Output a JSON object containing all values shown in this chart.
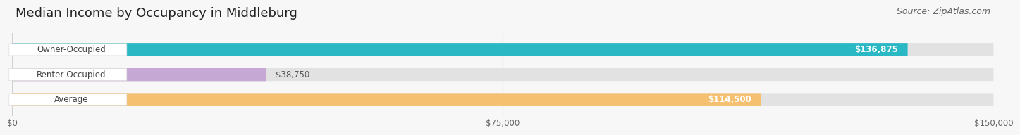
{
  "title": "Median Income by Occupancy in Middleburg",
  "source": "Source: ZipAtlas.com",
  "categories": [
    "Owner-Occupied",
    "Renter-Occupied",
    "Average"
  ],
  "values": [
    136875,
    38750,
    114500
  ],
  "value_labels": [
    "$136,875",
    "$38,750",
    "$114,500"
  ],
  "bar_colors": [
    "#2ab8c5",
    "#c5a8d4",
    "#f5c070"
  ],
  "bar_bg_color": "#e8e8e8",
  "xlim": [
    0,
    150000
  ],
  "xticks": [
    0,
    75000,
    150000
  ],
  "xtick_labels": [
    "$0",
    "$75,000",
    "$150,000"
  ],
  "title_fontsize": 13,
  "source_fontsize": 9,
  "label_fontsize": 8.5,
  "value_fontsize": 8.5,
  "background_color": "#f7f7f7",
  "bar_height": 0.52
}
